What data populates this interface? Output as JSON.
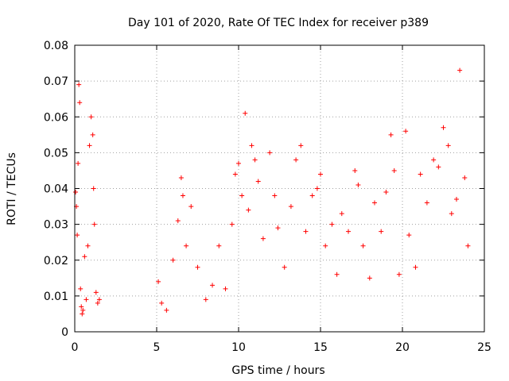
{
  "chart_data": {
    "type": "scatter",
    "title": "Day 101 of 2020, Rate Of TEC Index for receiver p389",
    "xlabel": "GPS time / hours",
    "ylabel": "ROTI / TECUs",
    "xlim": [
      0,
      25
    ],
    "ylim": [
      0,
      0.08
    ],
    "x_ticks": [
      "0",
      "5",
      "10",
      "15",
      "20",
      "25"
    ],
    "y_ticks": [
      "0",
      "0.01",
      "0.02",
      "0.03",
      "0.04",
      "0.05",
      "0.06",
      "0.07",
      "0.08"
    ],
    "grid": true,
    "marker": "plus",
    "color": "#ff0000",
    "series": [
      {
        "x": [
          0.05,
          0.1,
          0.15,
          0.2,
          0.25,
          0.3,
          0.35,
          0.4,
          0.45,
          0.5,
          0.6,
          0.7,
          0.8,
          0.9,
          1.0,
          1.1,
          1.15,
          1.2,
          1.3,
          1.4,
          1.5,
          5.1,
          5.3,
          5.6,
          6.0,
          6.3,
          6.5,
          6.6,
          6.8,
          7.1,
          7.5,
          8.0,
          8.4,
          8.8,
          9.2,
          9.6,
          9.8,
          10.0,
          10.2,
          10.4,
          10.6,
          10.8,
          11.0,
          11.2,
          11.5,
          11.9,
          12.2,
          12.4,
          12.8,
          13.2,
          13.5,
          13.8,
          14.1,
          14.5,
          14.8,
          15.0,
          15.3,
          15.7,
          16.0,
          16.3,
          16.7,
          17.1,
          17.3,
          17.6,
          18.0,
          18.3,
          18.7,
          19.0,
          19.3,
          19.5,
          19.8,
          20.2,
          20.4,
          20.8,
          21.1,
          21.5,
          21.9,
          22.2,
          22.5,
          22.8,
          23.0,
          23.3,
          23.5,
          23.8,
          24.0
        ],
        "y": [
          0.039,
          0.035,
          0.027,
          0.047,
          0.069,
          0.064,
          0.012,
          0.007,
          0.005,
          0.006,
          0.021,
          0.009,
          0.024,
          0.052,
          0.06,
          0.055,
          0.04,
          0.03,
          0.011,
          0.008,
          0.009,
          0.014,
          0.008,
          0.006,
          0.02,
          0.031,
          0.043,
          0.038,
          0.024,
          0.035,
          0.018,
          0.009,
          0.013,
          0.024,
          0.012,
          0.03,
          0.044,
          0.047,
          0.038,
          0.061,
          0.034,
          0.052,
          0.048,
          0.042,
          0.026,
          0.05,
          0.038,
          0.029,
          0.018,
          0.035,
          0.048,
          0.052,
          0.028,
          0.038,
          0.04,
          0.044,
          0.024,
          0.03,
          0.016,
          0.033,
          0.028,
          0.045,
          0.041,
          0.024,
          0.015,
          0.036,
          0.028,
          0.039,
          0.055,
          0.045,
          0.016,
          0.056,
          0.027,
          0.018,
          0.044,
          0.036,
          0.048,
          0.046,
          0.057,
          0.052,
          0.033,
          0.037,
          0.073,
          0.043,
          0.024
        ]
      }
    ]
  }
}
